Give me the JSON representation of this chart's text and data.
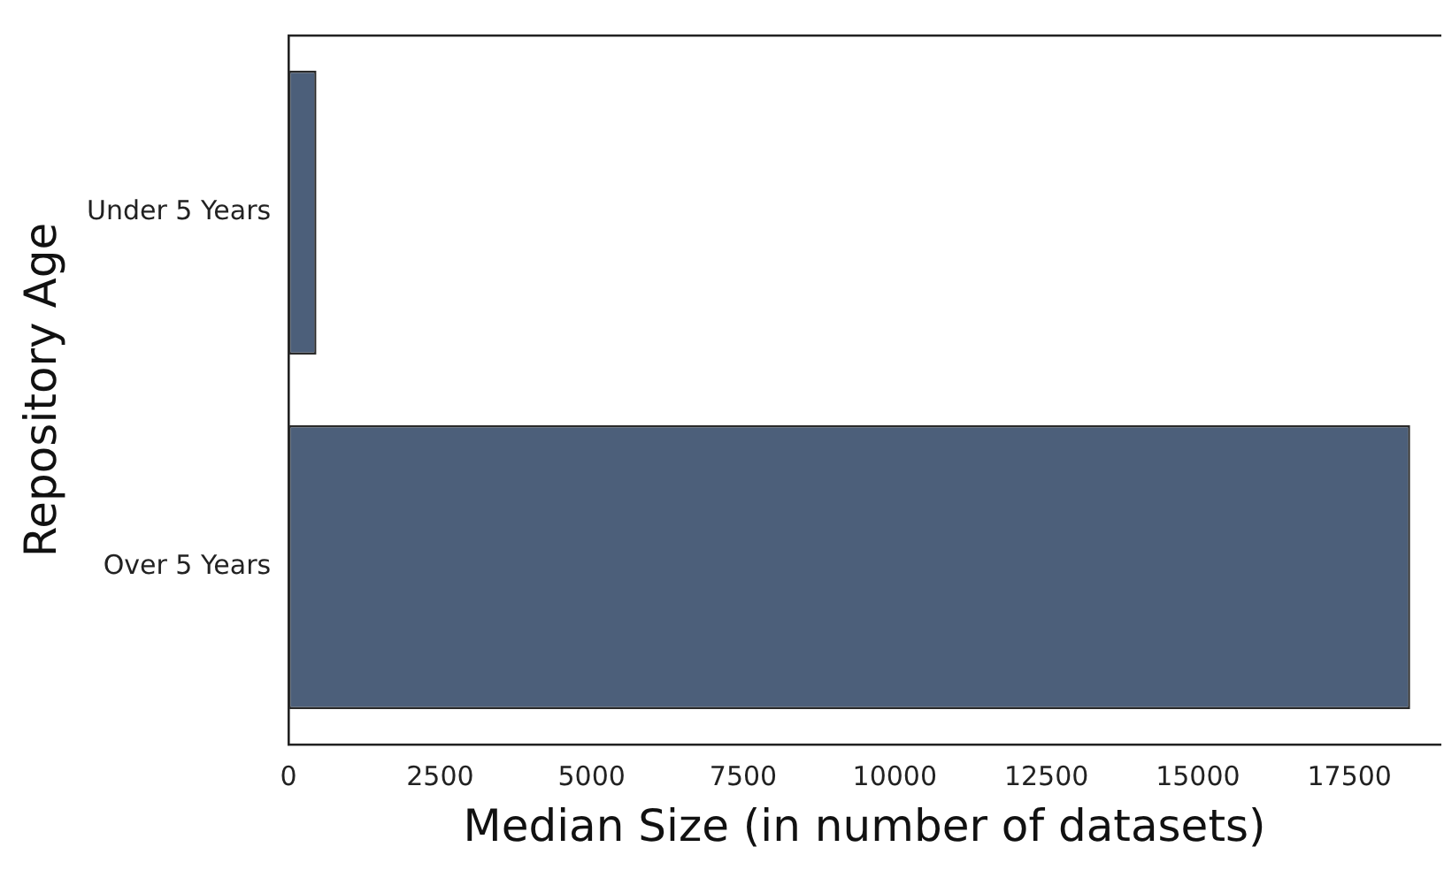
{
  "chart_data": {
    "type": "bar",
    "orientation": "horizontal",
    "categories": [
      "Under 5 Years",
      "Over 5 Years"
    ],
    "values": [
      460,
      18500
    ],
    "color": "#4c5f7a",
    "xlim": [
      0,
      19000
    ],
    "xticks": [
      0,
      2500,
      5000,
      7500,
      10000,
      12500,
      15000,
      17500
    ],
    "xlabel": "Median Size (in number of datasets)",
    "ylabel": "Repository Age",
    "grid": false,
    "legend": false
  }
}
